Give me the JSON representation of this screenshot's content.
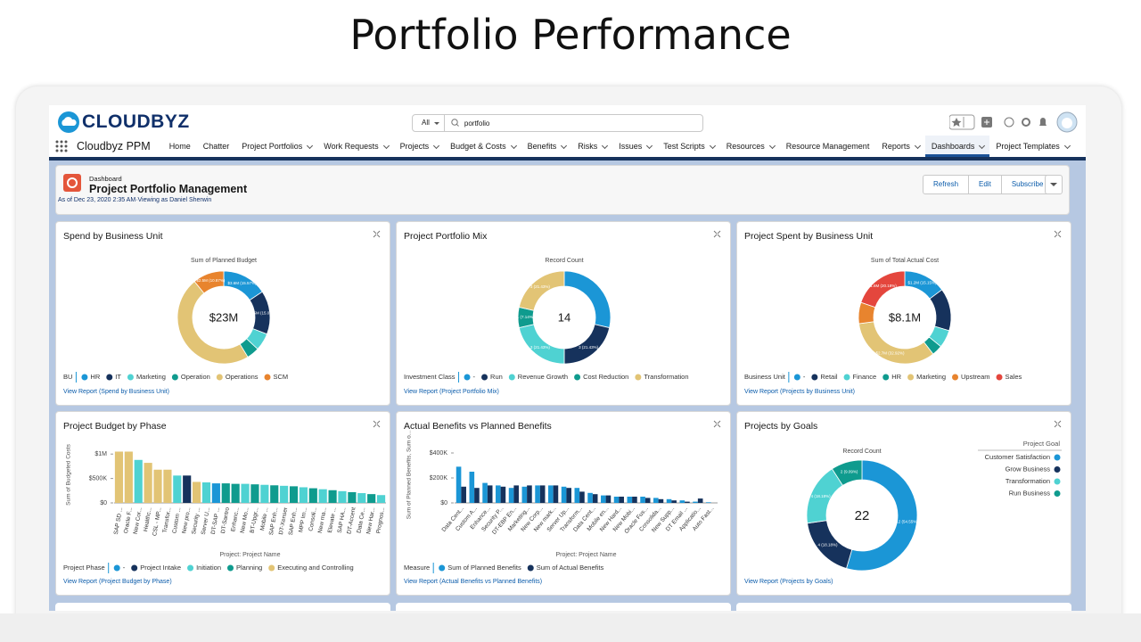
{
  "title": "Portfolio Performance",
  "header": {
    "logo": "CLOUDBYZ",
    "search_scope": "All",
    "search_query": "portfolio",
    "app_name": "Cloudbyz PPM",
    "nav": [
      {
        "label": "Home",
        "menu": false
      },
      {
        "label": "Chatter",
        "menu": false
      },
      {
        "label": "Project Portfolios",
        "menu": true
      },
      {
        "label": "Work Requests",
        "menu": true
      },
      {
        "label": "Projects",
        "menu": true
      },
      {
        "label": "Budget & Costs",
        "menu": true
      },
      {
        "label": "Benefits",
        "menu": true
      },
      {
        "label": "Risks",
        "menu": true
      },
      {
        "label": "Issues",
        "menu": true
      },
      {
        "label": "Test Scripts",
        "menu": true
      },
      {
        "label": "Resources",
        "menu": true
      },
      {
        "label": "Resource Management",
        "menu": false
      },
      {
        "label": "Reports",
        "menu": true
      },
      {
        "label": "Dashboards",
        "menu": true,
        "active": true
      },
      {
        "label": "Project Templates",
        "menu": true
      }
    ]
  },
  "dashboard": {
    "kicker": "Dashboard",
    "title": "Project Portfolio Management",
    "subtitle": "As of Dec 23, 2020 2:35 AM·Viewing as Daniel Sherwin",
    "buttons": [
      "Refresh",
      "Edit",
      "Subscribe"
    ]
  },
  "widgets": [
    {
      "title": "Spend by Business Unit",
      "footer": "View Report (Spend by Business Unit)",
      "chart_data": {
        "type": "donut",
        "subtitle": "Sum of Planned Budget",
        "center_label": "$23M",
        "legend_title": "BU",
        "legend_position": "bottom",
        "categories": [
          "HR",
          "IT",
          "Marketing",
          "Operation",
          "Operations",
          "SCM"
        ],
        "colors": [
          "#1b96d6",
          "#16325c",
          "#4fd2d2",
          "#0f9b8e",
          "#e2c475",
          "#e8842e"
        ],
        "values": [
          3.6,
          3.5,
          1.4,
          1.0,
          11.0,
          2.5
        ],
        "value_labels": [
          "$3.6M (15.57%)",
          "$3.5M (15.02%)",
          null,
          null,
          null,
          "$2.5M (10.87%)"
        ]
      }
    },
    {
      "title": "Project Portfolio Mix",
      "footer": "View Report (Project Portfolio Mix)",
      "chart_data": {
        "type": "donut",
        "subtitle": "Record Count",
        "center_label": "14",
        "legend_title": "Investment Class",
        "legend_position": "bottom",
        "categories": [
          "-",
          "Run",
          "Revenue Growth",
          "Cost Reduction",
          "Transformation"
        ],
        "colors": [
          "#1b96d6",
          "#16325c",
          "#4fd2d2",
          "#0f9b8e",
          "#e2c475"
        ],
        "values": [
          4,
          3,
          3,
          1,
          3
        ],
        "value_labels": [
          null,
          "3 (21.43%)",
          "3 (21.43%)",
          "1 (7.14%)",
          "3 (21.43%)"
        ]
      }
    },
    {
      "title": "Project Spent by Business Unit",
      "footer": "View Report (Projects by Business Unit)",
      "chart_data": {
        "type": "donut",
        "subtitle": "Sum of Total Actual Cost",
        "center_label": "$8.1M",
        "legend_title": "Business Unit",
        "legend_position": "bottom",
        "categories": [
          "-",
          "Retail",
          "Finance",
          "HR",
          "Marketing",
          "Upstream",
          "Sales"
        ],
        "colors": [
          "#1b96d6",
          "#16325c",
          "#4fd2d2",
          "#0f9b8e",
          "#e2c475",
          "#e8842e",
          "#e4463d"
        ],
        "values": [
          1.2,
          1.2,
          0.5,
          0.3,
          2.7,
          0.6,
          1.6
        ],
        "value_labels": [
          "$1.2M (15.15%)",
          null,
          null,
          null,
          "$2.7M (32.92%)",
          null,
          "$1.6M (20.18%)"
        ]
      }
    },
    {
      "title": "Project Budget by Phase",
      "footer": "View Report (Project Budget by Phase)",
      "chart_data": {
        "type": "bar",
        "y_label": "Sum of Budgeted Costs",
        "x_label": "Project: Project Name",
        "legend_title": "Project Phase",
        "categories": [
          "SAP SD ...",
          "Oracle F...",
          "New Cor...",
          "Healthc...",
          "CSL - MP...",
          "Transfor...",
          "Custom ...",
          "New pro...",
          "Security ...",
          "Server U...",
          "DT-SAP ...",
          "DT-Santro",
          "Enhanc...",
          "New Mo...",
          "BT-Upgr...",
          "Mobile ...",
          "SAP Enh...",
          "DT-Xenser",
          "SAP Enh...",
          "MPP Im...",
          "Consoli...",
          "New ma...",
          "Elevate ...",
          "SAP HA...",
          "DT-Accent",
          "Data Ce...",
          "New Har...",
          "Prognos..."
        ],
        "series": [
          {
            "name": "-",
            "color": "#1b96d6",
            "values": [
              null,
              null,
              null,
              null,
              null,
              null,
              null,
              null,
              null,
              null,
              400000,
              null,
              null,
              null,
              null,
              null,
              null,
              null,
              null,
              null,
              null,
              null,
              null,
              null,
              null,
              null,
              null,
              null
            ]
          },
          {
            "name": "Project Intake",
            "color": "#16325c",
            "values": [
              null,
              null,
              null,
              null,
              null,
              null,
              null,
              560000,
              null,
              null,
              null,
              null,
              null,
              null,
              null,
              null,
              null,
              null,
              null,
              null,
              null,
              null,
              null,
              null,
              null,
              null,
              null,
              null
            ]
          },
          {
            "name": "Initiation",
            "color": "#4fd2d2",
            "values": [
              null,
              null,
              880000,
              null,
              null,
              null,
              560000,
              null,
              null,
              420000,
              null,
              null,
              null,
              390000,
              null,
              370000,
              null,
              350000,
              null,
              320000,
              null,
              280000,
              null,
              240000,
              null,
              200000,
              null,
              160000
            ]
          },
          {
            "name": "Planning",
            "color": "#0f9b8e",
            "values": [
              null,
              null,
              null,
              null,
              null,
              null,
              null,
              null,
              null,
              null,
              null,
              400000,
              390000,
              null,
              380000,
              null,
              360000,
              null,
              340000,
              null,
              300000,
              null,
              260000,
              null,
              220000,
              null,
              180000,
              null
            ]
          },
          {
            "name": "Executing and Controlling",
            "color": "#e2c475",
            "values": [
              1050000,
              1050000,
              null,
              820000,
              680000,
              680000,
              null,
              null,
              430000,
              null,
              null,
              null,
              null,
              null,
              null,
              null,
              null,
              null,
              null,
              null,
              null,
              null,
              null,
              null,
              null,
              null,
              null,
              null
            ]
          }
        ],
        "ylim": [
          0,
          1150000
        ],
        "yticks": [
          {
            "value": 0,
            "label": "$0"
          },
          {
            "value": 500000,
            "label": "$500K"
          },
          {
            "value": 1000000,
            "label": "$1M"
          }
        ]
      }
    },
    {
      "title": "Actual Benefits vs Planned Benefits",
      "footer": "View Report (Actual Benefits vs Planned Benefits)",
      "chart_data": {
        "type": "grouped_bar",
        "y_label": "Sum of Planned Benefits, Sum o...",
        "x_label": "Project: Project Name",
        "legend_title": "Measure",
        "categories": [
          "Data Cent...",
          "Custom A...",
          "Enhance...",
          "Security P...",
          "DT-EBP En...",
          "Marketing...",
          "New Corp...",
          "New mark...",
          "Server Up...",
          "Transform...",
          "Data Cent...",
          "Mobile en...",
          "New Hard...",
          "New Mobi...",
          "Oracle Fus...",
          "Consolida...",
          "New Supp...",
          "DT Email ...",
          "Applicatio...",
          "Auto Fast..."
        ],
        "series": [
          {
            "name": "Sum of Planned Benefits",
            "color": "#1b96d6",
            "values": [
              290000,
              250000,
              160000,
              140000,
              120000,
              130000,
              140000,
              140000,
              130000,
              120000,
              80000,
              60000,
              50000,
              50000,
              50000,
              40000,
              30000,
              20000,
              10000,
              5000
            ]
          },
          {
            "name": "Sum of Actual Benefits",
            "color": "#16325c",
            "values": [
              130000,
              120000,
              140000,
              130000,
              140000,
              140000,
              140000,
              140000,
              120000,
              90000,
              70000,
              60000,
              50000,
              50000,
              40000,
              30000,
              20000,
              10000,
              35000,
              0
            ]
          }
        ],
        "ylim": [
          0,
          450000
        ],
        "yticks": [
          {
            "value": 0,
            "label": "$0"
          },
          {
            "value": 200000,
            "label": "$200K"
          },
          {
            "value": 400000,
            "label": "$400K"
          }
        ]
      }
    },
    {
      "title": "Projects by Goals",
      "footer": "View Report (Projects by Goals)",
      "chart_data": {
        "type": "donut",
        "subtitle": "Record Count",
        "center_label": "22",
        "legend_title": "Project Goal",
        "legend_position": "right",
        "categories": [
          "Customer Satisfaction",
          "Grow Business",
          "Transformation",
          "Run Business"
        ],
        "colors": [
          "#1b96d6",
          "#16325c",
          "#4fd2d2",
          "#0f9b8e"
        ],
        "values": [
          12,
          4,
          4,
          2
        ],
        "value_labels": [
          "12 (54.55%)",
          "4 (18.18%)",
          "4 (18.18%)",
          "2 (9.09%)"
        ]
      }
    }
  ]
}
